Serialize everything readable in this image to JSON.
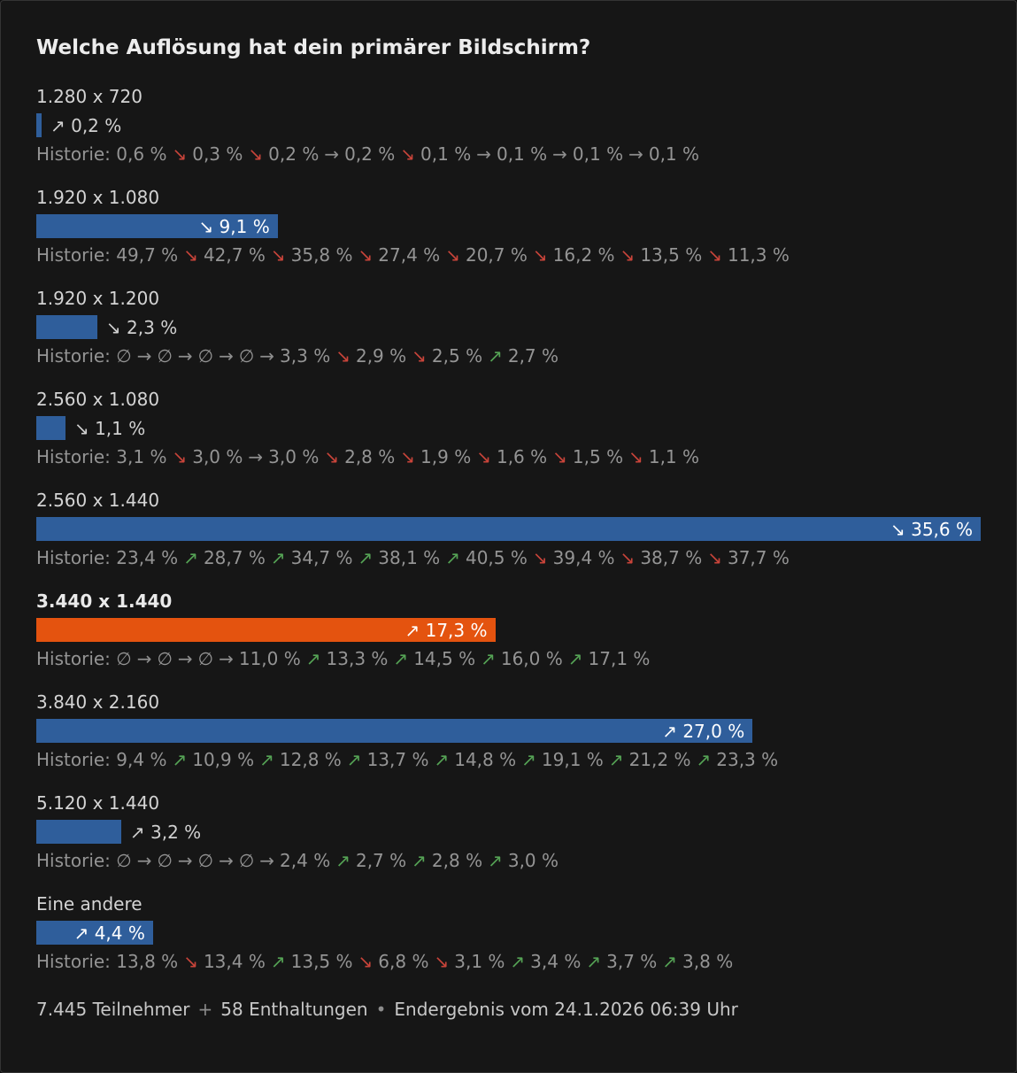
{
  "poll": {
    "question": "Welche Auflösung hat dein primärer Bildschirm?",
    "history_label": "Historie:",
    "footer": {
      "participants": "7.445 Teilnehmer",
      "sep1": "+",
      "abstentions": "58 Enthaltungen",
      "sep2": "•",
      "result": "Endergebnis vom 24.1.2026 06:39 Uhr"
    }
  },
  "colors": {
    "background": "#161616",
    "card_border": "#343434",
    "bar_blue": "#2f5e9b",
    "bar_orange": "#e4530f",
    "title_text": "#ececec",
    "label_text": "#d4d4d4",
    "history_text": "#949494",
    "bar_label_inside": "#ffffff",
    "arrow_up": "#55a355",
    "arrow_down": "#c9443a",
    "arrow_flat": "#8e8e8e"
  },
  "chart_data": {
    "type": "bar",
    "title": "Welche Auflösung hat dein primärer Bildschirm?",
    "unit": "%",
    "max_value": 35.6,
    "legend_position": "none",
    "grid": false,
    "options": [
      {
        "key": "1280x720",
        "label": "1.280 x 720",
        "value": 0.2,
        "value_label": "0,2 %",
        "trend": "up",
        "selected": false,
        "label_inside": false,
        "history": [
          {
            "arrow": null,
            "value": "0,6 %"
          },
          {
            "arrow": "down",
            "value": "0,3 %"
          },
          {
            "arrow": "down",
            "value": "0,2 %"
          },
          {
            "arrow": "same",
            "value": "0,2 %"
          },
          {
            "arrow": "down",
            "value": "0,1 %"
          },
          {
            "arrow": "same",
            "value": "0,1 %"
          },
          {
            "arrow": "same",
            "value": "0,1 %"
          },
          {
            "arrow": "same",
            "value": "0,1 %"
          }
        ]
      },
      {
        "key": "1920x1080",
        "label": "1.920 x 1.080",
        "value": 9.1,
        "value_label": "9,1 %",
        "trend": "down",
        "selected": false,
        "label_inside": true,
        "history": [
          {
            "arrow": null,
            "value": "49,7 %"
          },
          {
            "arrow": "down",
            "value": "42,7 %"
          },
          {
            "arrow": "down",
            "value": "35,8 %"
          },
          {
            "arrow": "down",
            "value": "27,4 %"
          },
          {
            "arrow": "down",
            "value": "20,7 %"
          },
          {
            "arrow": "down",
            "value": "16,2 %"
          },
          {
            "arrow": "down",
            "value": "13,5 %"
          },
          {
            "arrow": "down",
            "value": "11,3 %"
          }
        ]
      },
      {
        "key": "1920x1200",
        "label": "1.920 x 1.200",
        "value": 2.3,
        "value_label": "2,3 %",
        "trend": "down",
        "selected": false,
        "label_inside": false,
        "history": [
          {
            "arrow": null,
            "value": "∅"
          },
          {
            "arrow": "same",
            "value": "∅"
          },
          {
            "arrow": "same",
            "value": "∅"
          },
          {
            "arrow": "same",
            "value": "∅"
          },
          {
            "arrow": "same",
            "value": "3,3 %"
          },
          {
            "arrow": "down",
            "value": "2,9 %"
          },
          {
            "arrow": "down",
            "value": "2,5 %"
          },
          {
            "arrow": "up",
            "value": "2,7 %"
          }
        ]
      },
      {
        "key": "2560x1080",
        "label": "2.560 x 1.080",
        "value": 1.1,
        "value_label": "1,1 %",
        "trend": "down",
        "selected": false,
        "label_inside": false,
        "history": [
          {
            "arrow": null,
            "value": "3,1 %"
          },
          {
            "arrow": "down",
            "value": "3,0 %"
          },
          {
            "arrow": "same",
            "value": "3,0 %"
          },
          {
            "arrow": "down",
            "value": "2,8 %"
          },
          {
            "arrow": "down",
            "value": "1,9 %"
          },
          {
            "arrow": "down",
            "value": "1,6 %"
          },
          {
            "arrow": "down",
            "value": "1,5 %"
          },
          {
            "arrow": "down",
            "value": "1,1 %"
          }
        ]
      },
      {
        "key": "2560x1440",
        "label": "2.560 x 1.440",
        "value": 35.6,
        "value_label": "35,6 %",
        "trend": "down",
        "selected": false,
        "label_inside": true,
        "history": [
          {
            "arrow": null,
            "value": "23,4 %"
          },
          {
            "arrow": "up",
            "value": "28,7 %"
          },
          {
            "arrow": "up",
            "value": "34,7 %"
          },
          {
            "arrow": "up",
            "value": "38,1 %"
          },
          {
            "arrow": "up",
            "value": "40,5 %"
          },
          {
            "arrow": "down",
            "value": "39,4 %"
          },
          {
            "arrow": "down",
            "value": "38,7 %"
          },
          {
            "arrow": "down",
            "value": "37,7 %"
          }
        ]
      },
      {
        "key": "3440x1440",
        "label": "3.440 x 1.440",
        "value": 17.3,
        "value_label": "17,3 %",
        "trend": "up",
        "selected": true,
        "label_inside": true,
        "history": [
          {
            "arrow": null,
            "value": "∅"
          },
          {
            "arrow": "same",
            "value": "∅"
          },
          {
            "arrow": "same",
            "value": "∅"
          },
          {
            "arrow": "same",
            "value": "11,0 %"
          },
          {
            "arrow": "up",
            "value": "13,3 %"
          },
          {
            "arrow": "up",
            "value": "14,5 %"
          },
          {
            "arrow": "up",
            "value": "16,0 %"
          },
          {
            "arrow": "up",
            "value": "17,1 %"
          }
        ]
      },
      {
        "key": "3840x2160",
        "label": "3.840 x 2.160",
        "value": 27.0,
        "value_label": "27,0 %",
        "trend": "up",
        "selected": false,
        "label_inside": true,
        "history": [
          {
            "arrow": null,
            "value": "9,4 %"
          },
          {
            "arrow": "up",
            "value": "10,9 %"
          },
          {
            "arrow": "up",
            "value": "12,8 %"
          },
          {
            "arrow": "up",
            "value": "13,7 %"
          },
          {
            "arrow": "up",
            "value": "14,8 %"
          },
          {
            "arrow": "up",
            "value": "19,1 %"
          },
          {
            "arrow": "up",
            "value": "21,2 %"
          },
          {
            "arrow": "up",
            "value": "23,3 %"
          }
        ]
      },
      {
        "key": "5120x1440",
        "label": "5.120 x 1.440",
        "value": 3.2,
        "value_label": "3,2 %",
        "trend": "up",
        "selected": false,
        "label_inside": false,
        "history": [
          {
            "arrow": null,
            "value": "∅"
          },
          {
            "arrow": "same",
            "value": "∅"
          },
          {
            "arrow": "same",
            "value": "∅"
          },
          {
            "arrow": "same",
            "value": "∅"
          },
          {
            "arrow": "same",
            "value": "2,4 %"
          },
          {
            "arrow": "up",
            "value": "2,7 %"
          },
          {
            "arrow": "up",
            "value": "2,8 %"
          },
          {
            "arrow": "up",
            "value": "3,0 %"
          }
        ]
      },
      {
        "key": "eine-andere",
        "label": "Eine andere",
        "value": 4.4,
        "value_label": "4,4 %",
        "trend": "up",
        "selected": false,
        "label_inside": true,
        "history": [
          {
            "arrow": null,
            "value": "13,8 %"
          },
          {
            "arrow": "down",
            "value": "13,4 %"
          },
          {
            "arrow": "up",
            "value": "13,5 %"
          },
          {
            "arrow": "down",
            "value": "6,8 %"
          },
          {
            "arrow": "down",
            "value": "3,1 %"
          },
          {
            "arrow": "up",
            "value": "3,4 %"
          },
          {
            "arrow": "up",
            "value": "3,7 %"
          },
          {
            "arrow": "up",
            "value": "3,8 %"
          }
        ]
      }
    ]
  }
}
